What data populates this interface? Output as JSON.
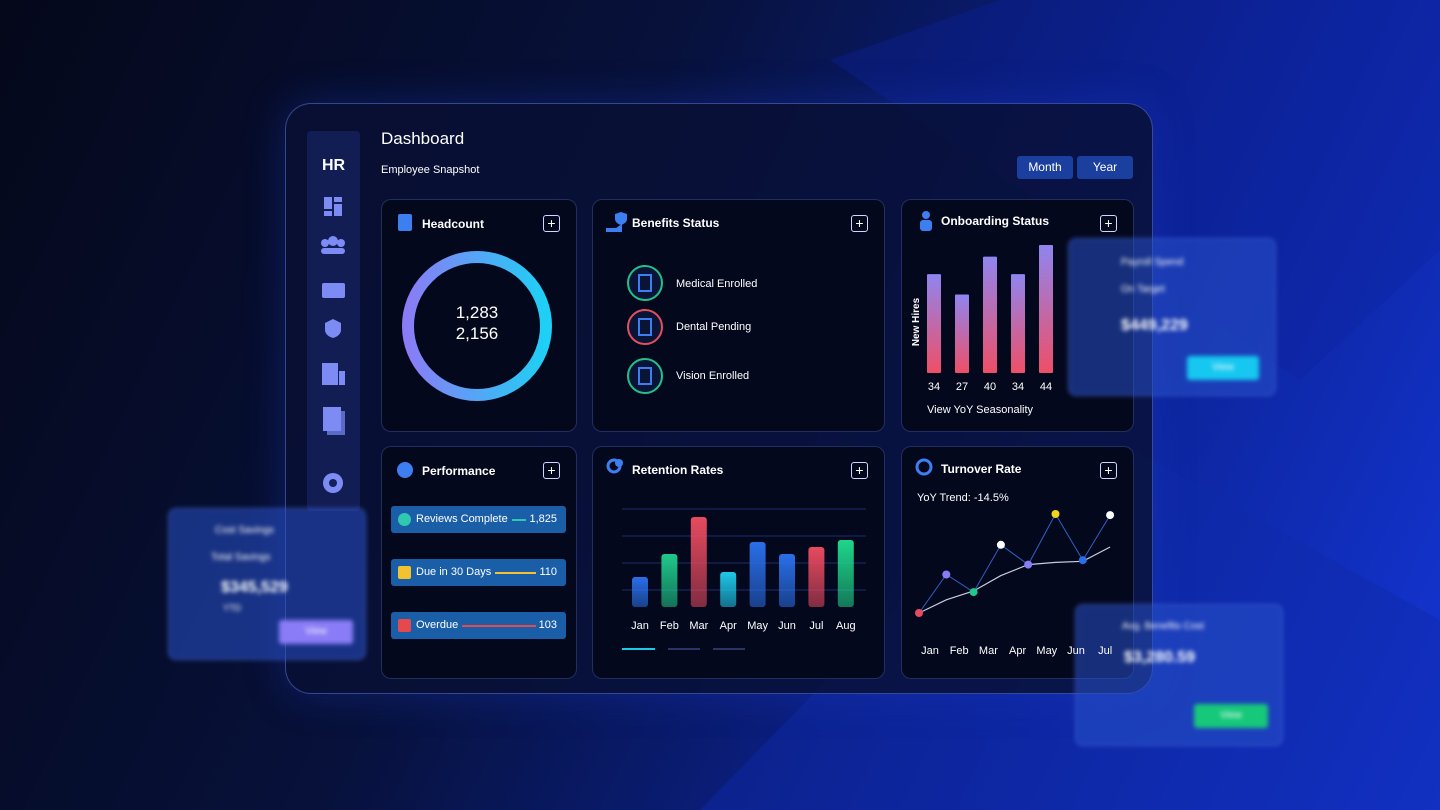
{
  "sidebar": {
    "logo": "HR"
  },
  "header": {
    "title": "Dashboard",
    "subtitle": "Employee Snapshot",
    "tabs": [
      "Month",
      "Year"
    ]
  },
  "headcount": {
    "title": "Headcount",
    "values": [
      "1,283",
      "2,156"
    ]
  },
  "benefits": {
    "title": "Benefits Status",
    "items": [
      "Medical Enrolled",
      "Dental Pending",
      "Vision Enrolled"
    ],
    "colors": [
      "#22c08a",
      "#e0505e",
      "#22c08a"
    ]
  },
  "onboarding": {
    "title": "Onboarding Status",
    "axis_label": "New Hires",
    "values": [
      34,
      27,
      40,
      34,
      44
    ],
    "footer": "View YoY Seasonality"
  },
  "performance": {
    "title": "Performance",
    "rows": [
      {
        "label": "Reviews Complete",
        "value": "1,825",
        "color": "#2fc9b0"
      },
      {
        "label": "Due in 30 Days",
        "value": "110",
        "color": "#f2c230"
      },
      {
        "label": "Overdue",
        "value": "103",
        "color": "#e5484d"
      }
    ]
  },
  "retention": {
    "title": "Retention Rates",
    "categories": [
      "Jan",
      "Feb",
      "Mar",
      "Apr",
      "May",
      "Jun",
      "Jul",
      "Aug"
    ],
    "values": [
      30,
      53,
      90,
      35,
      65,
      53,
      60,
      67
    ],
    "colors": [
      "#2a6fe8",
      "#1fc98a",
      "#e84a5f",
      "#1ec8e8",
      "#2a6fe8",
      "#2a6fe8",
      "#e84a5f",
      "#1fd68a"
    ]
  },
  "turnover": {
    "title": "Turnover Rate",
    "subtitle": "YoY Trend: -14.5%",
    "categories": [
      "Jan",
      "Feb",
      "Mar",
      "Apr",
      "May",
      "Jun",
      "Jul"
    ],
    "points": [
      6,
      41,
      25,
      68,
      50,
      96,
      54,
      95
    ],
    "point_colors": [
      "#e84a5f",
      "#8b7cf6",
      "#1fc98a",
      "#ffffff",
      "#8b7cf6",
      "#f2d21e",
      "#2a6fe8",
      "#ffffff"
    ],
    "trend": [
      6,
      18,
      26,
      40,
      50,
      52,
      53,
      66
    ]
  },
  "float_cards": [
    {
      "title": "Payroll Spend",
      "status": "On Target",
      "value": "$449,229",
      "button": "View"
    },
    {
      "title": "Cost Savings",
      "status": "Total Savings",
      "value": "$345,529",
      "note": "YTD",
      "button": "View"
    },
    {
      "title": "Avg. Benefits Cost",
      "value": "$3,280.59",
      "button": "View"
    }
  ]
}
